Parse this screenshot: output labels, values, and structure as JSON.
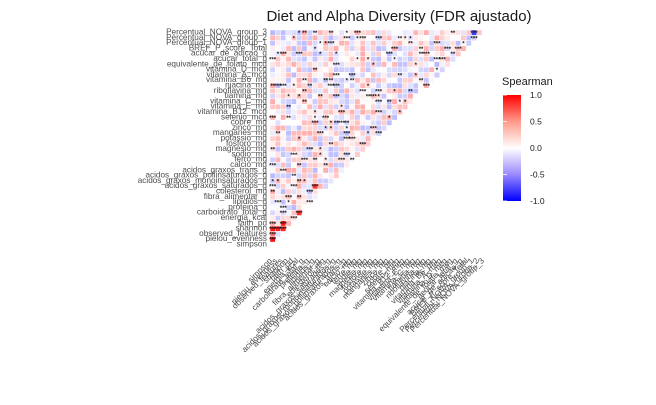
{
  "chart_data": {
    "type": "heatmap",
    "title": "Diet and Alpha Diversity (FDR ajustado)",
    "xlabel": "",
    "ylabel": "",
    "variables": [
      "Percentual_NOVA_group_3",
      "Percentual_NOVA_group_2",
      "Percentual_NOVA_group_1",
      "BREF_P_score_Total",
      "acucar_de_adicao_g",
      "acucar_total_g",
      "equivalente_de_folato_mcg",
      "vitamina_D_mcg",
      "vitamina_A_mcg",
      "vitamina_B6_mg",
      "niacina_mg",
      "riboflavina_mg",
      "tiamina_mg",
      "vitamina_C_mg",
      "vitamina_E_mg",
      "vitamina_B12_mcg",
      "selenio_mcg",
      "cobre_mg",
      "zinco_mg",
      "manganes_mg",
      "potassio_mg",
      "fosforo_mg",
      "magnesio_mg",
      "sodio_mg",
      "ferro_mg",
      "calcio_mg",
      "acidos_graxos_trans_g",
      "acidos_graxos_poliinsaturados_g",
      "acidos_graxos_monoinsaturados_g",
      "acidos_graxos_saturados_g",
      "colesterol_mg",
      "fibra_alimentar_g",
      "lipidios_g",
      "proteina_g",
      "carboidrato_total_g",
      "energia_kcal",
      "faith_pd",
      "shannon",
      "observed_features",
      "pielou_evenness",
      "simpson"
    ],
    "value_range": [
      -1,
      1
    ],
    "color_scale": {
      "low": "#0000ff",
      "mid": "#ffffff",
      "high": "#ff0000"
    },
    "significance_marker": "*",
    "values_note": "",
    "cells_sampled": [
      {
        "row": "simpson",
        "col": "shannon",
        "value": 0.92,
        "sig": "***"
      },
      {
        "row": "simpson",
        "col": "observed_features",
        "value": 0.55,
        "sig": "***"
      },
      {
        "row": "simpson",
        "col": "pielou_evenness",
        "value": 0.95,
        "sig": "***"
      },
      {
        "row": "pielou_evenness",
        "col": "shannon",
        "value": 0.88,
        "sig": "***"
      },
      {
        "row": "observed_features",
        "col": "shannon",
        "value": 0.85,
        "sig": "***"
      },
      {
        "row": "faith_pd",
        "col": "observed_features",
        "value": 0.9,
        "sig": "***"
      },
      {
        "row": "carboidrato_total_g",
        "col": "energia_kcal",
        "value": 0.82,
        "sig": "***"
      },
      {
        "row": "acidos_graxos_saturados_g",
        "col": "lipidios_g",
        "value": 0.8,
        "sig": "***"
      },
      {
        "row": "Percentual_NOVA_group_3",
        "col": "Percentual_NOVA_group_1",
        "value": -0.75,
        "sig": "***"
      }
    ],
    "legend": {
      "title": "Spearman",
      "ticks": [
        1.0,
        0.5,
        0.0,
        -0.5,
        -1.0
      ],
      "tick_labels": [
        "1.0",
        "0.5",
        "0.0",
        "-0.5",
        "-1.0"
      ],
      "placement": "right"
    }
  }
}
